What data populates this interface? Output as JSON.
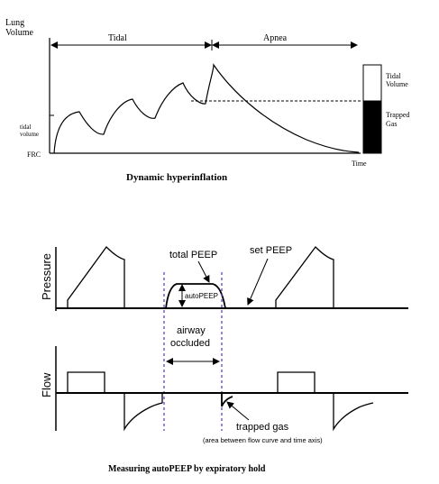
{
  "top": {
    "y_label_line1": "Lung",
    "y_label_line2": "Volume",
    "phase_tidal": "Tidal",
    "phase_apnea": "Apnea",
    "tidal_volume_line1": "tidal",
    "tidal_volume_line2": "volume",
    "frc": "FRC",
    "time": "Time",
    "bar_top_line1": "Tidal",
    "bar_top_line2": "Volume",
    "bar_bottom_line1": "Trapped",
    "bar_bottom_line2": "Gas",
    "caption": "Dynamic hyperinflation"
  },
  "bottom": {
    "pressure_label": "Pressure",
    "flow_label": "Flow",
    "total_peep": "total PEEP",
    "set_peep": "set PEEP",
    "auto_peep": "autoPEEP",
    "airway_line1": "airway",
    "airway_line2": "occluded",
    "trapped_gas": "trapped gas",
    "trapped_gas_note": "(area between flow curve and time axis)",
    "caption": "Measuring autoPEEP by expiratory hold"
  },
  "colors": {
    "ink": "#000000",
    "occlusion_marker": "#6a3fd0"
  }
}
